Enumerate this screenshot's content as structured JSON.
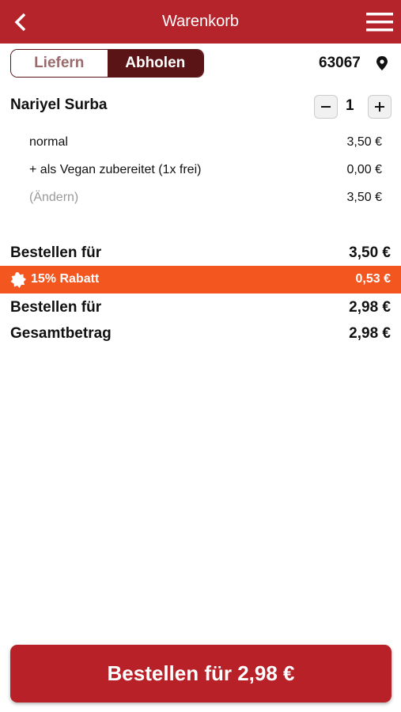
{
  "header": {
    "title": "Warenkorb"
  },
  "tabs": {
    "deliver": "Liefern",
    "pickup": "Abholen"
  },
  "location": {
    "postcode": "63067"
  },
  "item": {
    "name": "Nariyel Surba",
    "quantity": "1",
    "lines": [
      {
        "label": "normal",
        "price": "3,50 €"
      },
      {
        "label": "+ als Vegan zubereitet (1x frei)",
        "price": "0,00 €"
      },
      {
        "label": "(Ändern)",
        "price": "3,50 €"
      }
    ]
  },
  "summary": {
    "subtotal": {
      "label": "Bestellen für",
      "value": "3,50 €"
    },
    "discount": {
      "label": "15% Rabatt",
      "value": "0,53 €"
    },
    "after_discount": {
      "label": "Bestellen für",
      "value": "2,98 €"
    },
    "total": {
      "label": "Gesamtbetrag",
      "value": "2,98 €"
    }
  },
  "order_button": {
    "label": "Bestellen für 2,98 €"
  }
}
